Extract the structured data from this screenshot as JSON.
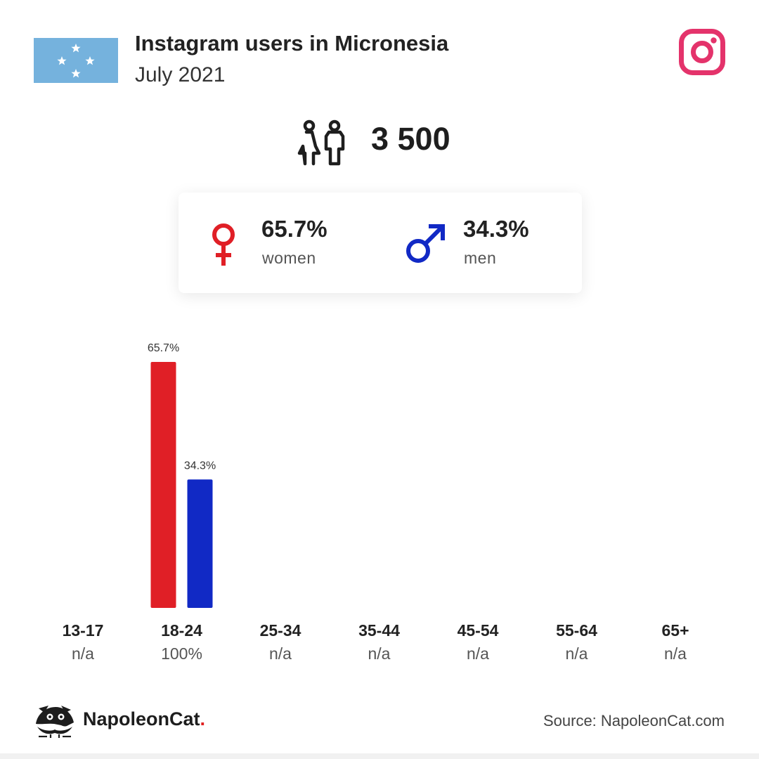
{
  "header": {
    "title": "Instagram users in Micronesia",
    "subtitle": "July 2021",
    "flag_icon": "micronesia-flag",
    "platform_icon": "instagram-icon"
  },
  "total": {
    "icon": "users-icon",
    "value": "3 500"
  },
  "gender": {
    "women": {
      "percent": "65.7%",
      "label": "women",
      "icon": "female-icon",
      "color": "#e01f26"
    },
    "men": {
      "percent": "34.3%",
      "label": "men",
      "icon": "male-icon",
      "color": "#1129c5"
    }
  },
  "chart_data": {
    "type": "bar",
    "categories": [
      "13-17",
      "18-24",
      "25-34",
      "35-44",
      "45-54",
      "55-64",
      "65+"
    ],
    "category_share": [
      "n/a",
      "100%",
      "n/a",
      "n/a",
      "n/a",
      "n/a",
      "n/a"
    ],
    "series": [
      {
        "name": "women",
        "color": "#e01f26",
        "values": [
          null,
          65.7,
          null,
          null,
          null,
          null,
          null
        ],
        "labels": [
          "",
          "65.7%",
          "",
          "",
          "",
          "",
          ""
        ]
      },
      {
        "name": "men",
        "color": "#1129c5",
        "values": [
          null,
          34.3,
          null,
          null,
          null,
          null,
          null
        ],
        "labels": [
          "",
          "34.3%",
          "",
          "",
          "",
          "",
          ""
        ]
      }
    ],
    "ylim": [
      0,
      65.7
    ],
    "grid": false
  },
  "footer": {
    "brand": "NapoleonCat",
    "brand_dot": ".",
    "source": "Source: NapoleonCat.com"
  }
}
